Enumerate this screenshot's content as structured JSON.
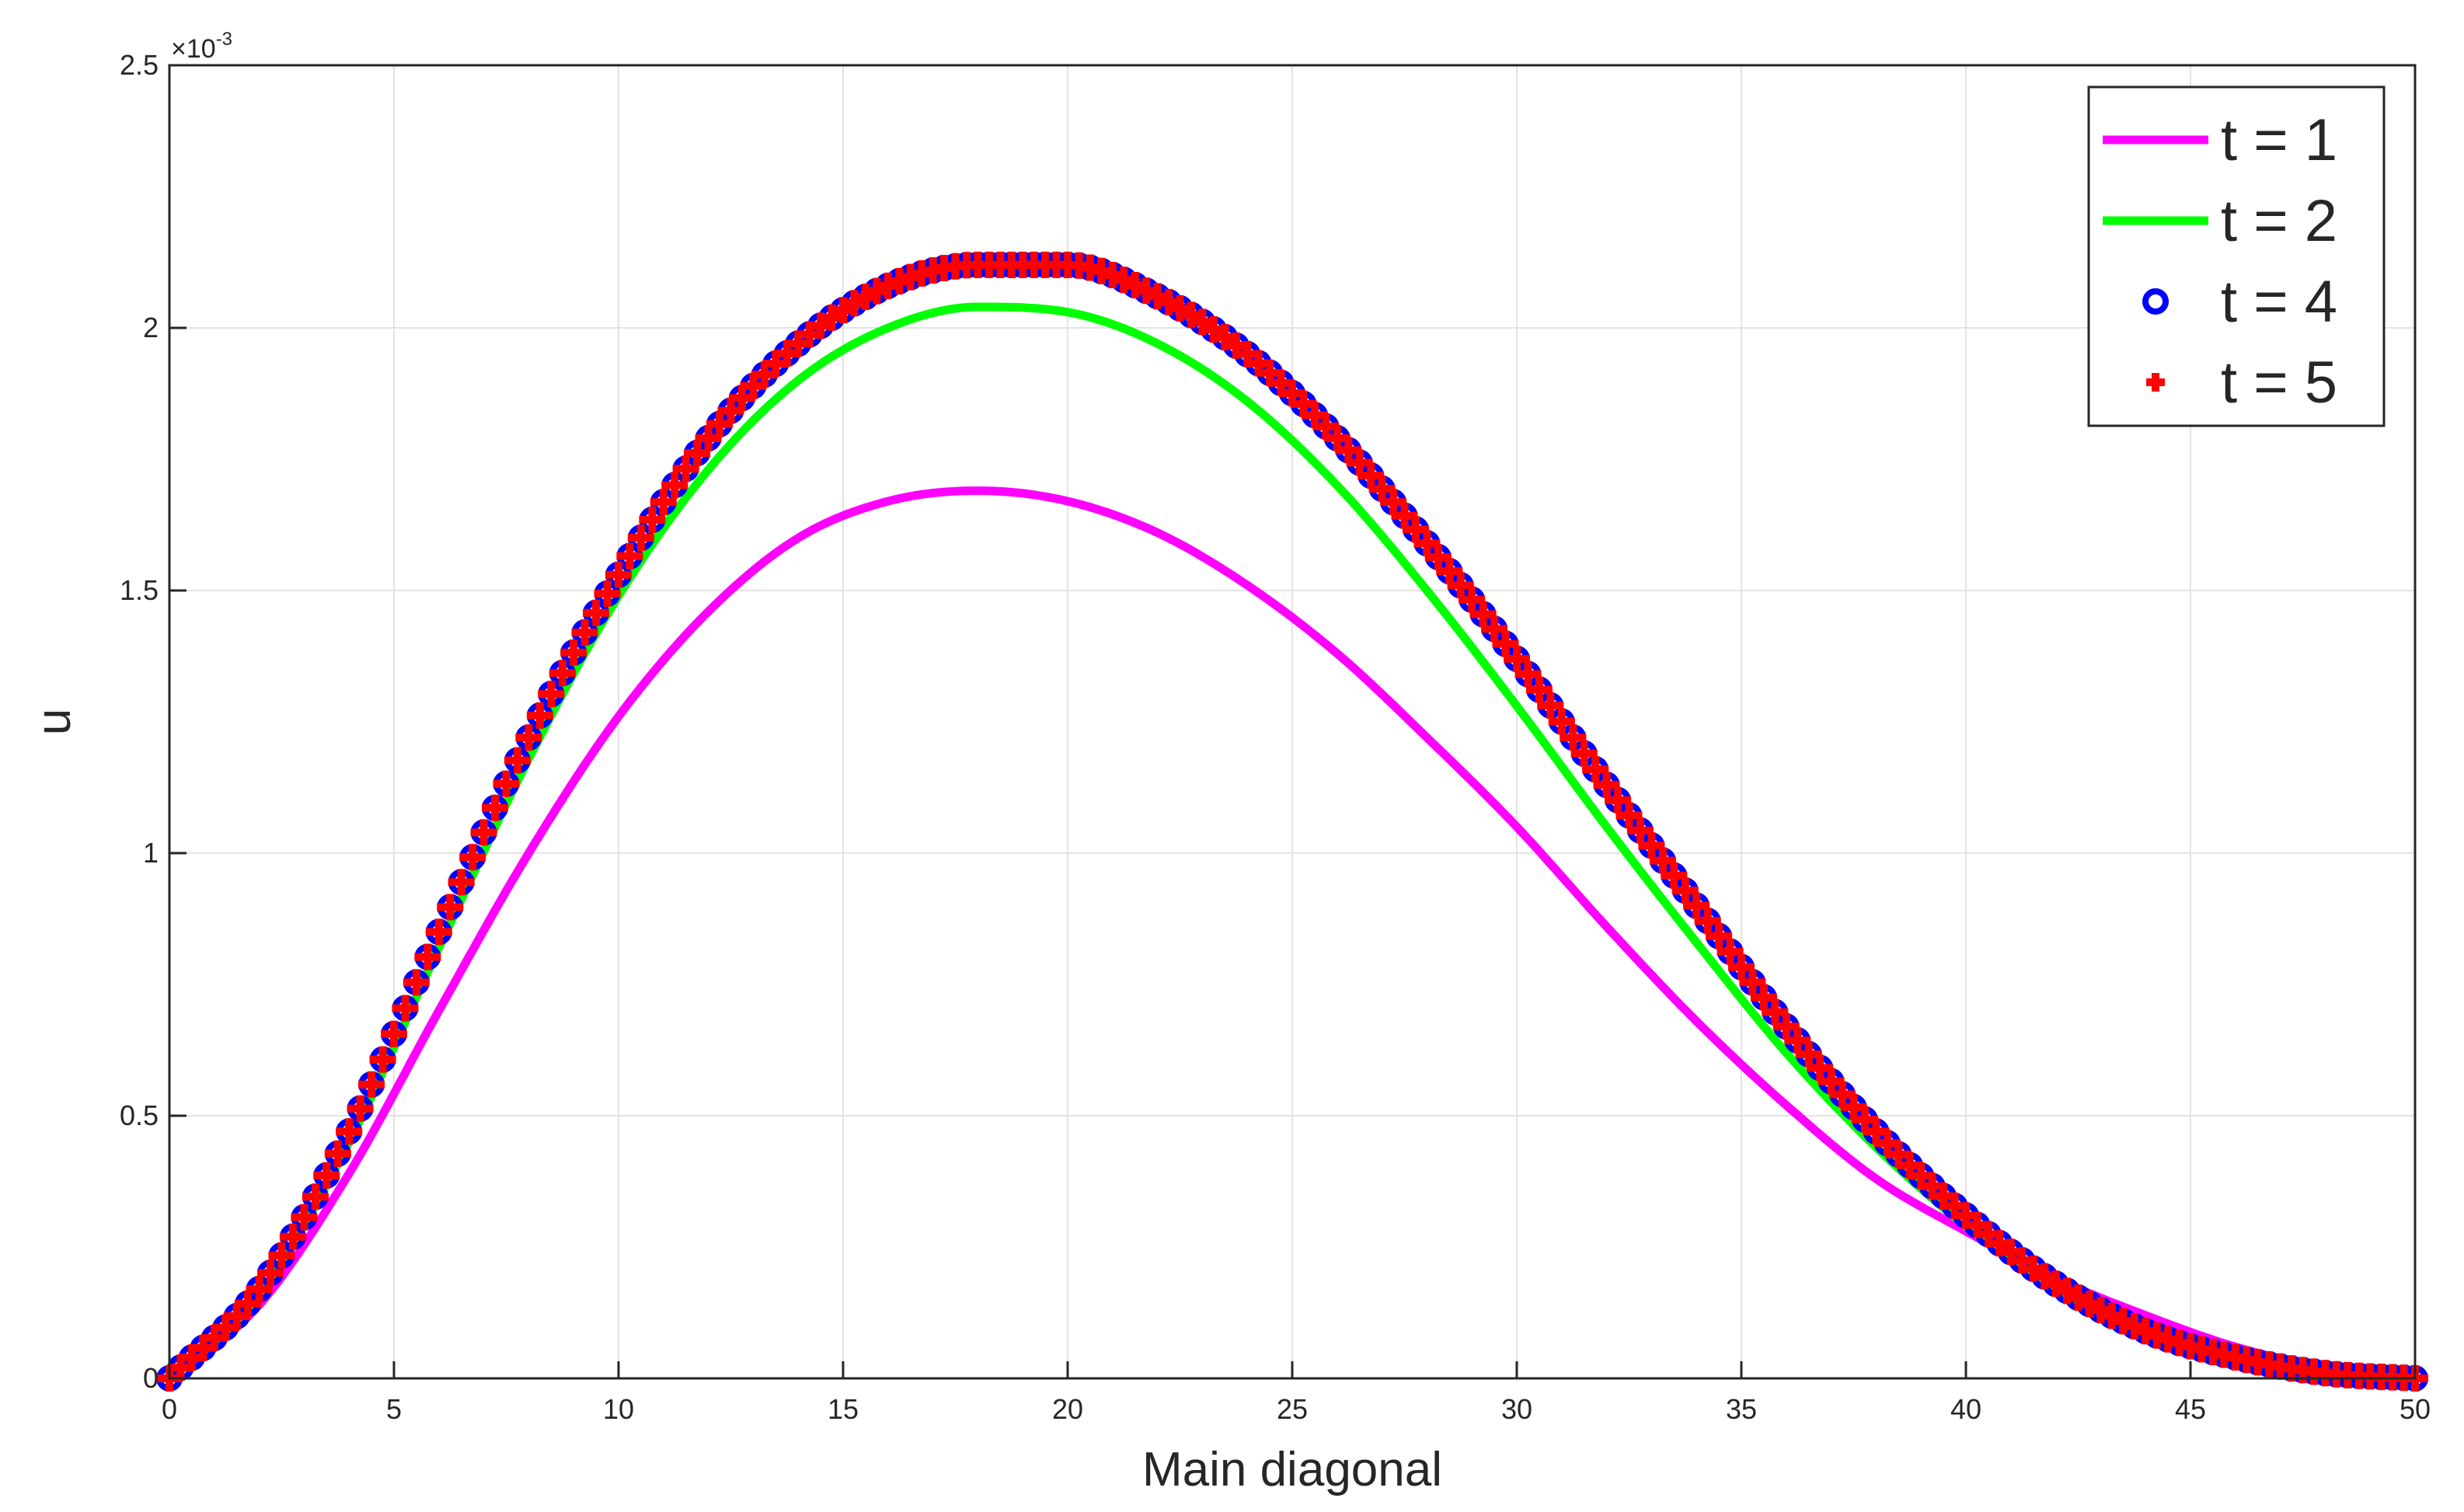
{
  "chart_data": {
    "type": "line",
    "title": "",
    "xlabel": "Main diagonal",
    "ylabel": "u",
    "xlim": [
      0,
      50
    ],
    "ylim": [
      0,
      2.5
    ],
    "y_exponent_label": "×10",
    "y_exponent_power": "-3",
    "x_ticks": [
      "0",
      "5",
      "10",
      "15",
      "20",
      "25",
      "30",
      "35",
      "40",
      "45",
      "50"
    ],
    "y_ticks": [
      "0",
      "0.5",
      "1",
      "1.5",
      "2",
      "2.5"
    ],
    "grid": true,
    "legend_position": "top-right",
    "series": [
      {
        "name": "t = 1",
        "style": "line",
        "color": "#ff00ff",
        "x": [
          0,
          2,
          4,
          6,
          8,
          10,
          12,
          14,
          16,
          18,
          20,
          22,
          24,
          26,
          28,
          30,
          32,
          34,
          36,
          38,
          40,
          42,
          44,
          46,
          48,
          50
        ],
        "values": [
          0,
          0.14,
          0.39,
          0.7,
          1.0,
          1.26,
          1.46,
          1.6,
          1.67,
          1.69,
          1.67,
          1.61,
          1.51,
          1.38,
          1.22,
          1.05,
          0.86,
          0.68,
          0.52,
          0.38,
          0.28,
          0.19,
          0.12,
          0.06,
          0.02,
          0
        ]
      },
      {
        "name": "t = 2",
        "style": "line",
        "color": "#00ff00",
        "x": [
          0,
          2,
          4,
          6,
          8,
          10,
          12,
          14,
          16,
          18,
          20,
          22,
          24,
          26,
          28,
          30,
          32,
          34,
          36,
          38,
          40,
          42,
          44,
          46,
          48,
          50
        ],
        "values": [
          0,
          0.16,
          0.45,
          0.82,
          1.18,
          1.49,
          1.73,
          1.9,
          2.0,
          2.04,
          2.03,
          1.97,
          1.86,
          1.7,
          1.5,
          1.28,
          1.05,
          0.83,
          0.62,
          0.44,
          0.29,
          0.17,
          0.09,
          0.04,
          0.01,
          0
        ]
      },
      {
        "name": "t = 4",
        "style": "circle",
        "color": "#0000ff",
        "x": [
          0,
          2,
          4,
          6,
          8,
          10,
          12,
          14,
          16,
          18,
          20,
          22,
          24,
          26,
          28,
          30,
          32,
          34,
          36,
          38,
          40,
          42,
          44,
          46,
          48,
          50
        ],
        "values": [
          0,
          0.17,
          0.47,
          0.85,
          1.22,
          1.53,
          1.79,
          1.97,
          2.08,
          2.12,
          2.12,
          2.06,
          1.95,
          1.79,
          1.59,
          1.37,
          1.13,
          0.9,
          0.67,
          0.47,
          0.31,
          0.18,
          0.09,
          0.04,
          0.01,
          0
        ]
      },
      {
        "name": "t = 5",
        "style": "plus",
        "color": "#ff0000",
        "x": [
          0,
          2,
          4,
          6,
          8,
          10,
          12,
          14,
          16,
          18,
          20,
          22,
          24,
          26,
          28,
          30,
          32,
          34,
          36,
          38,
          40,
          42,
          44,
          46,
          48,
          50
        ],
        "values": [
          0,
          0.17,
          0.47,
          0.85,
          1.22,
          1.53,
          1.79,
          1.97,
          2.08,
          2.12,
          2.12,
          2.06,
          1.95,
          1.79,
          1.59,
          1.37,
          1.13,
          0.9,
          0.67,
          0.47,
          0.31,
          0.18,
          0.09,
          0.04,
          0.01,
          0
        ]
      }
    ]
  }
}
